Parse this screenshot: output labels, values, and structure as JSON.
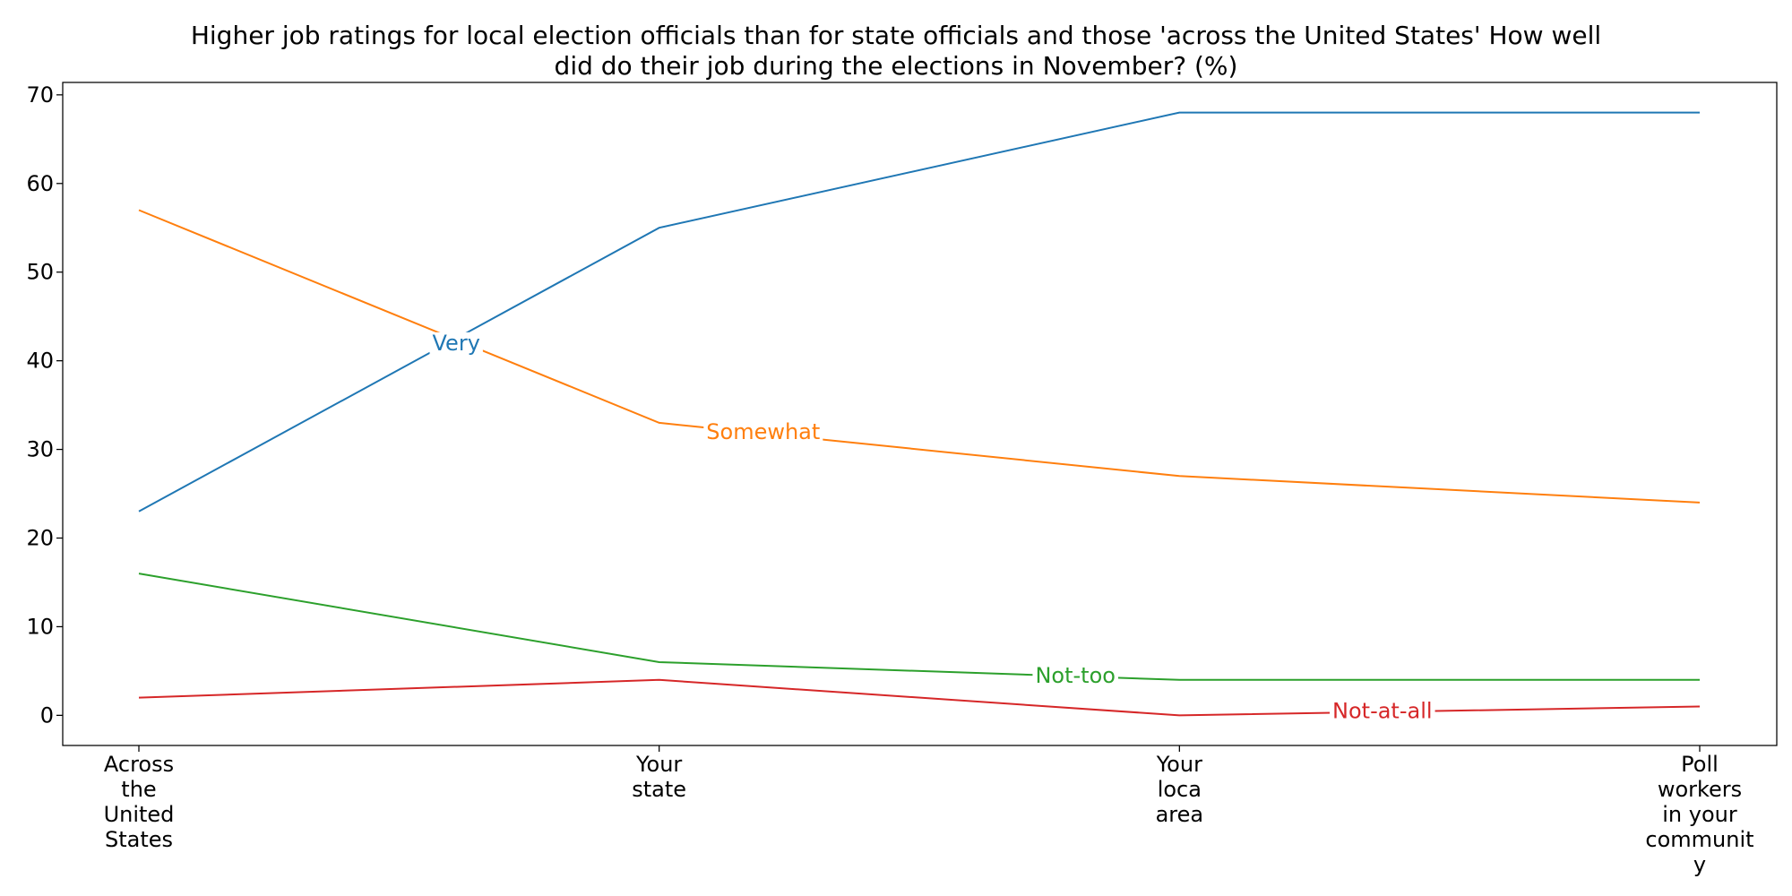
{
  "chart_data": {
    "type": "line",
    "title": "Higher job ratings for local election officials than for state officials and those 'across the United States' How well did do their job during the elections in November? (%)",
    "title_lines": [
      "Higher job ratings for local election officials than for state officials and those 'across the United States' How well",
      "did do their job during the elections in November? (%)"
    ],
    "xlabel": "",
    "ylabel": "",
    "categories": [
      "Across the United States",
      "Your state",
      "Your loca area",
      "Poll workers in your community"
    ],
    "category_label_lines": [
      [
        "Across",
        "the",
        "United",
        "States"
      ],
      [
        "Your",
        "state"
      ],
      [
        "Your",
        "loca",
        "area"
      ],
      [
        "Poll",
        "workers",
        "in your",
        "communit",
        "y"
      ]
    ],
    "ylim": [
      -3.4,
      71.4
    ],
    "yticks": [
      0,
      10,
      20,
      30,
      40,
      50,
      60,
      70
    ],
    "grid": false,
    "legend": "inline labels on lines",
    "series": [
      {
        "name": "Very",
        "values": [
          23,
          55,
          68,
          68
        ],
        "color": "#1f77b4",
        "label_at": [
          0.61,
          42
        ]
      },
      {
        "name": "Somewhat",
        "values": [
          57,
          33,
          27,
          24
        ],
        "color": "#ff7f0e",
        "label_at": [
          1.2,
          32
        ]
      },
      {
        "name": "Not-too",
        "values": [
          16,
          6,
          4,
          4
        ],
        "color": "#2ca02c",
        "label_at": [
          1.8,
          4.5
        ]
      },
      {
        "name": "Not-at-all",
        "values": [
          2,
          4,
          0,
          1
        ],
        "color": "#d62728",
        "label_at": [
          2.39,
          0.5
        ]
      }
    ]
  }
}
